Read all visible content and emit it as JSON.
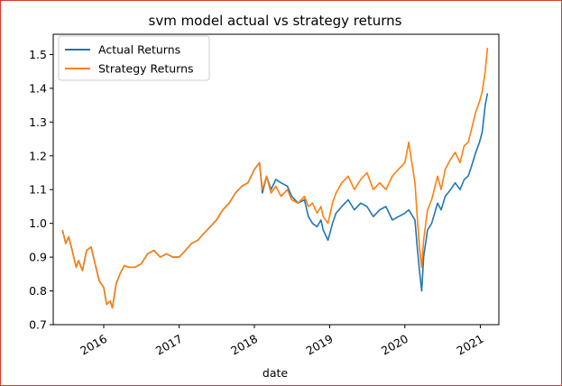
{
  "chart_data": {
    "type": "line",
    "title": "svm model actual vs strategy returns",
    "xlabel": "date",
    "ylabel": "",
    "xlim": [
      "2015-05-01",
      "2021-04-01"
    ],
    "ylim": [
      0.7,
      1.56
    ],
    "x_ticks": [
      "2016-01-01",
      "2017-01-01",
      "2018-01-01",
      "2019-01-01",
      "2020-01-01",
      "2021-01-01"
    ],
    "x_tick_labels": [
      "2016",
      "2017",
      "2018",
      "2019",
      "2020",
      "2021"
    ],
    "y_ticks": [
      0.7,
      0.8,
      0.9,
      1.0,
      1.1,
      1.2,
      1.3,
      1.4,
      1.5
    ],
    "y_tick_labels": [
      "0.7",
      "0.8",
      "0.9",
      "1.0",
      "1.1",
      "1.2",
      "1.3",
      "1.4",
      "1.5"
    ],
    "legend_position": "upper-left",
    "grid": false,
    "series": [
      {
        "name": "Actual Returns",
        "color": "#1f77b4",
        "x": [
          "2015-06-15",
          "2015-07-01",
          "2015-07-15",
          "2015-08-01",
          "2015-08-20",
          "2015-09-01",
          "2015-09-20",
          "2015-10-10",
          "2015-11-01",
          "2015-11-20",
          "2015-12-10",
          "2016-01-01",
          "2016-01-15",
          "2016-02-01",
          "2016-02-12",
          "2016-03-01",
          "2016-03-20",
          "2016-04-10",
          "2016-05-01",
          "2016-06-01",
          "2016-07-01",
          "2016-08-01",
          "2016-09-01",
          "2016-10-01",
          "2016-11-01",
          "2016-12-01",
          "2017-01-01",
          "2017-02-01",
          "2017-03-01",
          "2017-04-01",
          "2017-05-01",
          "2017-06-01",
          "2017-07-01",
          "2017-08-01",
          "2017-09-01",
          "2017-10-01",
          "2017-11-01",
          "2017-12-01",
          "2018-01-01",
          "2018-01-26",
          "2018-02-09",
          "2018-03-01",
          "2018-03-23",
          "2018-04-15",
          "2018-05-10",
          "2018-06-10",
          "2018-07-01",
          "2018-08-01",
          "2018-09-01",
          "2018-09-20",
          "2018-10-10",
          "2018-11-01",
          "2018-11-20",
          "2018-12-01",
          "2018-12-24",
          "2019-01-15",
          "2019-02-01",
          "2019-03-01",
          "2019-04-01",
          "2019-05-01",
          "2019-06-01",
          "2019-07-01",
          "2019-08-01",
          "2019-09-01",
          "2019-10-01",
          "2019-11-01",
          "2019-12-01",
          "2020-01-01",
          "2020-01-20",
          "2020-02-19",
          "2020-03-01",
          "2020-03-12",
          "2020-03-23",
          "2020-04-01",
          "2020-04-20",
          "2020-05-10",
          "2020-06-08",
          "2020-06-25",
          "2020-07-15",
          "2020-08-10",
          "2020-09-01",
          "2020-09-25",
          "2020-10-15",
          "2020-11-03",
          "2020-11-20",
          "2020-12-10",
          "2020-12-28",
          "2021-01-10",
          "2021-01-25",
          "2021-02-05"
        ],
        "values": [
          0.98,
          0.94,
          0.96,
          0.92,
          0.87,
          0.89,
          0.86,
          0.92,
          0.93,
          0.88,
          0.83,
          0.81,
          0.76,
          0.77,
          0.75,
          0.82,
          0.85,
          0.875,
          0.87,
          0.87,
          0.88,
          0.91,
          0.92,
          0.9,
          0.91,
          0.9,
          0.9,
          0.92,
          0.94,
          0.95,
          0.97,
          0.99,
          1.01,
          1.04,
          1.06,
          1.09,
          1.11,
          1.12,
          1.16,
          1.18,
          1.09,
          1.14,
          1.1,
          1.13,
          1.12,
          1.11,
          1.08,
          1.06,
          1.07,
          1.02,
          1.0,
          0.99,
          1.01,
          0.98,
          0.95,
          1.0,
          1.03,
          1.05,
          1.07,
          1.04,
          1.06,
          1.05,
          1.02,
          1.04,
          1.05,
          1.01,
          1.02,
          1.03,
          1.04,
          1.01,
          0.93,
          0.86,
          0.8,
          0.9,
          0.98,
          1.0,
          1.06,
          1.04,
          1.08,
          1.1,
          1.12,
          1.1,
          1.13,
          1.14,
          1.17,
          1.21,
          1.24,
          1.27,
          1.35,
          1.385
        ]
      },
      {
        "name": "Strategy Returns",
        "color": "#ff7f0e",
        "x": [
          "2015-06-15",
          "2015-07-01",
          "2015-07-15",
          "2015-08-01",
          "2015-08-20",
          "2015-09-01",
          "2015-09-20",
          "2015-10-10",
          "2015-11-01",
          "2015-11-20",
          "2015-12-10",
          "2016-01-01",
          "2016-01-15",
          "2016-02-01",
          "2016-02-12",
          "2016-03-01",
          "2016-03-20",
          "2016-04-10",
          "2016-05-01",
          "2016-06-01",
          "2016-07-01",
          "2016-08-01",
          "2016-09-01",
          "2016-10-01",
          "2016-11-01",
          "2016-12-01",
          "2017-01-01",
          "2017-02-01",
          "2017-03-01",
          "2017-04-01",
          "2017-05-01",
          "2017-06-01",
          "2017-07-01",
          "2017-08-01",
          "2017-09-01",
          "2017-10-01",
          "2017-11-01",
          "2017-12-01",
          "2018-01-01",
          "2018-01-26",
          "2018-02-09",
          "2018-03-01",
          "2018-03-23",
          "2018-04-15",
          "2018-05-10",
          "2018-06-10",
          "2018-07-01",
          "2018-08-01",
          "2018-09-01",
          "2018-09-20",
          "2018-10-10",
          "2018-11-01",
          "2018-11-20",
          "2018-12-01",
          "2018-12-24",
          "2019-01-15",
          "2019-02-01",
          "2019-03-01",
          "2019-04-01",
          "2019-05-01",
          "2019-06-01",
          "2019-07-01",
          "2019-08-01",
          "2019-09-01",
          "2019-10-01",
          "2019-11-01",
          "2019-12-01",
          "2020-01-01",
          "2020-01-20",
          "2020-02-19",
          "2020-03-01",
          "2020-03-12",
          "2020-03-23",
          "2020-04-01",
          "2020-04-20",
          "2020-05-10",
          "2020-06-08",
          "2020-06-25",
          "2020-07-15",
          "2020-08-10",
          "2020-09-01",
          "2020-09-25",
          "2020-10-15",
          "2020-11-03",
          "2020-11-20",
          "2020-12-10",
          "2020-12-28",
          "2021-01-10",
          "2021-01-25",
          "2021-02-05"
        ],
        "values": [
          0.98,
          0.94,
          0.96,
          0.92,
          0.87,
          0.89,
          0.86,
          0.92,
          0.93,
          0.88,
          0.83,
          0.81,
          0.76,
          0.77,
          0.75,
          0.82,
          0.85,
          0.875,
          0.87,
          0.87,
          0.88,
          0.91,
          0.92,
          0.9,
          0.91,
          0.9,
          0.9,
          0.92,
          0.94,
          0.95,
          0.97,
          0.99,
          1.01,
          1.04,
          1.06,
          1.09,
          1.11,
          1.12,
          1.16,
          1.18,
          1.1,
          1.14,
          1.09,
          1.11,
          1.08,
          1.1,
          1.07,
          1.06,
          1.08,
          1.05,
          1.06,
          1.03,
          1.05,
          1.02,
          1.0,
          1.06,
          1.09,
          1.12,
          1.14,
          1.1,
          1.13,
          1.15,
          1.1,
          1.12,
          1.1,
          1.14,
          1.16,
          1.18,
          1.24,
          1.12,
          1.02,
          0.93,
          0.87,
          0.95,
          1.04,
          1.07,
          1.14,
          1.1,
          1.16,
          1.19,
          1.21,
          1.18,
          1.23,
          1.24,
          1.28,
          1.33,
          1.36,
          1.39,
          1.45,
          1.52
        ]
      }
    ]
  }
}
